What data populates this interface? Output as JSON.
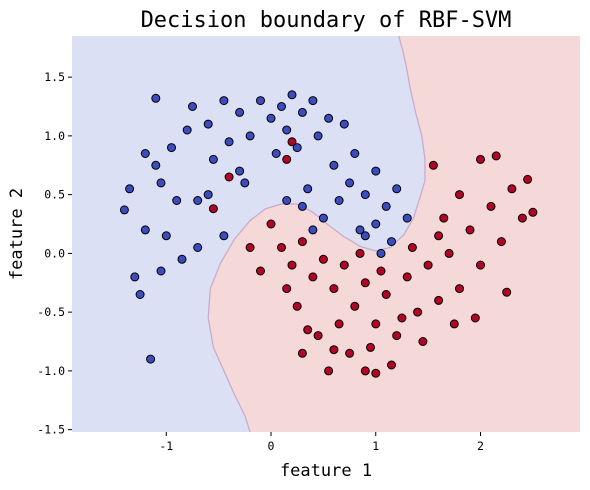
{
  "chart_data": {
    "type": "scatter",
    "title": "Decision boundary of RBF-SVM",
    "xlabel": "feature 1",
    "ylabel": "feature 2",
    "xlim": [
      -1.9,
      2.95
    ],
    "ylim": [
      -1.52,
      1.85
    ],
    "xticks": [
      -1,
      0,
      1,
      2
    ],
    "yticks": [
      -1.5,
      -1.0,
      -0.5,
      0.0,
      0.5,
      1.0,
      1.5
    ],
    "xtick_labels": [
      "-1",
      "0",
      "1",
      "2"
    ],
    "ytick_labels": [
      "-1.5",
      "-1.0",
      "-0.5",
      "0.0",
      "0.5",
      "1.0",
      "1.5"
    ],
    "grid": false,
    "legend": "none",
    "colors": {
      "class0_point": "#3b4cc0",
      "class1_point": "#b40426",
      "class0_region": "#dbe0f5",
      "class1_region": "#f5d8d8",
      "point_edge": "#000000",
      "boundary": "#c9a8c8"
    },
    "decision_boundary": [
      [
        1.22,
        1.85
      ],
      [
        1.26,
        1.72
      ],
      [
        1.3,
        1.55
      ],
      [
        1.33,
        1.4
      ],
      [
        1.38,
        1.2
      ],
      [
        1.44,
        1.0
      ],
      [
        1.47,
        0.8
      ],
      [
        1.47,
        0.62
      ],
      [
        1.42,
        0.47
      ],
      [
        1.36,
        0.3
      ],
      [
        1.27,
        0.16
      ],
      [
        1.14,
        0.05
      ],
      [
        1.0,
        0.02
      ],
      [
        0.85,
        0.06
      ],
      [
        0.7,
        0.14
      ],
      [
        0.55,
        0.24
      ],
      [
        0.4,
        0.35
      ],
      [
        0.25,
        0.42
      ],
      [
        0.1,
        0.42
      ],
      [
        -0.05,
        0.38
      ],
      [
        -0.2,
        0.28
      ],
      [
        -0.35,
        0.12
      ],
      [
        -0.48,
        -0.08
      ],
      [
        -0.58,
        -0.3
      ],
      [
        -0.6,
        -0.55
      ],
      [
        -0.55,
        -0.8
      ],
      [
        -0.45,
        -1.0
      ],
      [
        -0.35,
        -1.2
      ],
      [
        -0.25,
        -1.38
      ],
      [
        -0.2,
        -1.52
      ]
    ],
    "series": [
      {
        "class": 0,
        "points": [
          [
            -1.35,
            0.55
          ],
          [
            -1.2,
            0.85
          ],
          [
            -1.1,
            1.32
          ],
          [
            -1.05,
            0.6
          ],
          [
            -0.95,
            0.9
          ],
          [
            -0.8,
            1.05
          ],
          [
            -0.75,
            1.25
          ],
          [
            -0.7,
            0.45
          ],
          [
            -0.6,
            1.1
          ],
          [
            -0.55,
            0.8
          ],
          [
            -0.45,
            1.3
          ],
          [
            -0.4,
            0.95
          ],
          [
            -0.3,
            1.2
          ],
          [
            -0.25,
            0.6
          ],
          [
            -0.2,
            1.0
          ],
          [
            -0.1,
            1.3
          ],
          [
            0.0,
            1.15
          ],
          [
            0.05,
            0.85
          ],
          [
            0.1,
            1.25
          ],
          [
            0.15,
            1.05
          ],
          [
            0.2,
            1.35
          ],
          [
            0.25,
            0.9
          ],
          [
            0.3,
            1.2
          ],
          [
            0.35,
            0.55
          ],
          [
            0.4,
            1.3
          ],
          [
            0.45,
            1.0
          ],
          [
            0.55,
            1.15
          ],
          [
            0.6,
            0.75
          ],
          [
            0.7,
            1.1
          ],
          [
            0.75,
            0.6
          ],
          [
            0.8,
            0.85
          ],
          [
            0.9,
            0.5
          ],
          [
            1.0,
            0.7
          ],
          [
            1.1,
            0.4
          ],
          [
            1.2,
            0.55
          ],
          [
            1.3,
            0.3
          ],
          [
            1.15,
            0.1
          ],
          [
            1.0,
            0.25
          ],
          [
            0.85,
            0.2
          ],
          [
            0.5,
            0.3
          ],
          [
            0.4,
            0.2
          ],
          [
            0.3,
            0.4
          ],
          [
            0.15,
            0.45
          ],
          [
            -1.4,
            0.37
          ],
          [
            -1.3,
            -0.2
          ],
          [
            -1.25,
            -0.35
          ],
          [
            -1.2,
            0.2
          ],
          [
            -1.15,
            -0.9
          ],
          [
            -1.05,
            -0.15
          ],
          [
            -1.0,
            0.15
          ],
          [
            -0.9,
            0.45
          ],
          [
            -0.85,
            -0.05
          ],
          [
            -0.7,
            0.05
          ],
          [
            -0.6,
            0.5
          ],
          [
            -0.45,
            0.15
          ],
          [
            -1.1,
            0.75
          ],
          [
            -0.3,
            0.7
          ],
          [
            0.65,
            0.45
          ],
          [
            0.9,
            0.15
          ],
          [
            1.05,
            0.0
          ]
        ]
      },
      {
        "class": 1,
        "points": [
          [
            0.0,
            0.25
          ],
          [
            0.1,
            0.05
          ],
          [
            0.2,
            -0.1
          ],
          [
            0.3,
            0.1
          ],
          [
            0.4,
            -0.2
          ],
          [
            0.5,
            -0.05
          ],
          [
            0.6,
            -0.3
          ],
          [
            0.7,
            -0.1
          ],
          [
            0.8,
            -0.45
          ],
          [
            0.9,
            -0.25
          ],
          [
            1.0,
            -0.6
          ],
          [
            1.1,
            -0.35
          ],
          [
            1.2,
            -0.7
          ],
          [
            1.3,
            -0.2
          ],
          [
            1.4,
            -0.5
          ],
          [
            1.5,
            -0.1
          ],
          [
            1.6,
            -0.4
          ],
          [
            1.7,
            0.0
          ],
          [
            1.8,
            -0.3
          ],
          [
            1.9,
            0.2
          ],
          [
            2.0,
            -0.1
          ],
          [
            2.1,
            0.4
          ],
          [
            2.2,
            0.1
          ],
          [
            2.3,
            0.55
          ],
          [
            2.4,
            0.3
          ],
          [
            2.45,
            0.63
          ],
          [
            2.5,
            0.35
          ],
          [
            2.25,
            -0.33
          ],
          [
            2.0,
            0.8
          ],
          [
            2.15,
            0.83
          ],
          [
            1.55,
            0.75
          ],
          [
            1.8,
            0.5
          ],
          [
            1.65,
            0.3
          ],
          [
            0.55,
            -1.0
          ],
          [
            0.75,
            -0.85
          ],
          [
            0.9,
            -1.0
          ],
          [
            1.0,
            -1.02
          ],
          [
            0.35,
            -0.65
          ],
          [
            0.25,
            -0.45
          ],
          [
            0.15,
            -0.3
          ],
          [
            -0.1,
            -0.15
          ],
          [
            -0.2,
            0.05
          ],
          [
            0.45,
            -0.7
          ],
          [
            0.65,
            -0.6
          ],
          [
            1.25,
            -0.55
          ],
          [
            1.45,
            -0.75
          ],
          [
            1.75,
            -0.6
          ],
          [
            1.95,
            -0.55
          ],
          [
            0.2,
            0.95
          ],
          [
            0.15,
            0.8
          ],
          [
            -0.4,
            0.65
          ],
          [
            -0.55,
            0.38
          ],
          [
            0.85,
            0.0
          ],
          [
            1.05,
            -0.15
          ],
          [
            1.35,
            0.05
          ],
          [
            1.6,
            0.15
          ],
          [
            0.95,
            -0.8
          ],
          [
            1.15,
            -0.95
          ],
          [
            0.6,
            -0.82
          ],
          [
            0.3,
            -0.85
          ]
        ]
      }
    ]
  }
}
